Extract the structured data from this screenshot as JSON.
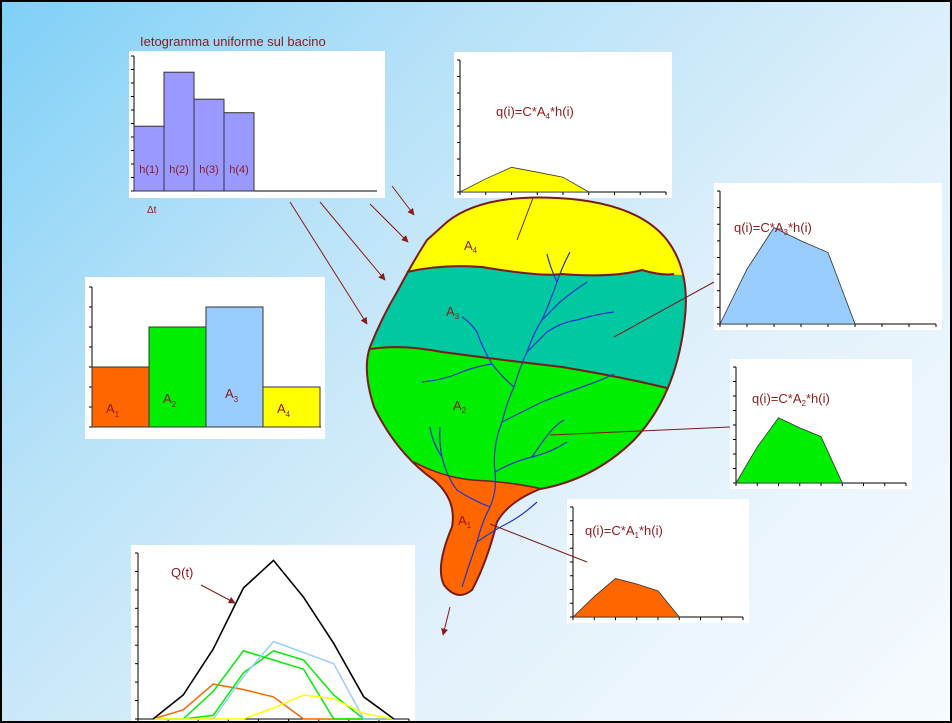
{
  "hyetograph": {
    "title": "Ietogramma uniforme sul bacino",
    "bars": [
      {
        "label": "h(1)",
        "value": 2.4
      },
      {
        "label": "h(2)",
        "value": 4.4
      },
      {
        "label": "h(3)",
        "value": 3.4
      },
      {
        "label": "h(4)",
        "value": 2.9
      }
    ],
    "dt_label": "Δt",
    "bar_color": "#9999ff"
  },
  "areas_chart": {
    "bars": [
      {
        "name": "A",
        "sub": "1",
        "value": 3,
        "color": "#ff6600"
      },
      {
        "name": "A",
        "sub": "2",
        "value": 5,
        "color": "#00ee00"
      },
      {
        "name": "A",
        "sub": "3",
        "value": 6,
        "color": "#99ccff"
      },
      {
        "name": "A",
        "sub": "4",
        "value": 2,
        "color": "#ffff00"
      }
    ]
  },
  "basin_zones": [
    {
      "name": "A",
      "sub": "4",
      "color": "#ffff00"
    },
    {
      "name": "A",
      "sub": "3",
      "color": "#00c8a0"
    },
    {
      "name": "A",
      "sub": "2",
      "color": "#00ee00"
    },
    {
      "name": "A",
      "sub": "1",
      "color": "#ff6600"
    }
  ],
  "unit_hydrographs": [
    {
      "formula_pre": "q(i)=C*A",
      "sub": "4",
      "formula_post": "*h(i)",
      "color": "#ffff00",
      "values": [
        0,
        0.8,
        1.5,
        1.2,
        0.9,
        0
      ]
    },
    {
      "formula_pre": "q(i)=C*A",
      "sub": "3",
      "formula_post": "*h(i)",
      "color": "#99ccff",
      "values": [
        0,
        3.3,
        5.8,
        5.0,
        4.3,
        0
      ]
    },
    {
      "formula_pre": "q(i)=C*A",
      "sub": "2",
      "formula_post": "*h(i)",
      "color": "#00ee00",
      "values": [
        0,
        2.5,
        4.5,
        3.8,
        3.2,
        0
      ]
    },
    {
      "formula_pre": "q(i)=C*A",
      "sub": "1",
      "formula_post": "*h(i)",
      "color": "#ff6600",
      "values": [
        0,
        1.5,
        2.8,
        2.4,
        1.9,
        0
      ]
    }
  ],
  "outflow_chart": {
    "label": "Q(t)",
    "total": [
      0,
      1.3,
      3.8,
      7.1,
      8.6,
      6.6,
      4.1,
      1.2,
      0
    ],
    "series": [
      {
        "color": "#ff6600",
        "values": [
          0,
          0.5,
          1.9,
          1.6,
          1.2,
          0,
          0,
          0,
          0
        ]
      },
      {
        "color": "#00ee00",
        "values": [
          0,
          0,
          1.5,
          3.7,
          3.2,
          2.7,
          0,
          0,
          0
        ]
      },
      {
        "color": "#00ee00",
        "values": [
          0,
          0,
          0.2,
          2.5,
          3.7,
          3.2,
          1.3,
          0,
          0
        ]
      },
      {
        "color": "#99ccff",
        "values": [
          0,
          0,
          0,
          2.3,
          4.2,
          3.6,
          3.0,
          0,
          0
        ]
      },
      {
        "color": "#ffff00",
        "values": [
          0,
          0,
          0,
          0,
          0.6,
          1.3,
          1.1,
          0.3,
          0
        ]
      }
    ]
  }
}
